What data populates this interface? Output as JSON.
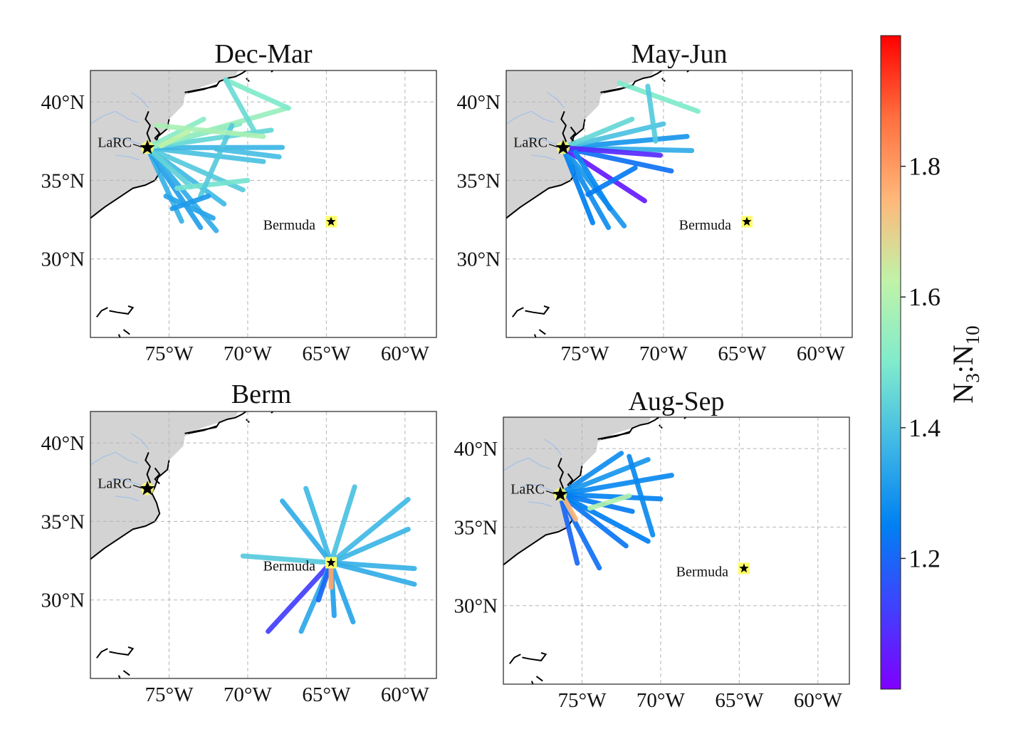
{
  "panels": [
    {
      "id": "dec-mar",
      "title": "Dec-Mar",
      "tracks": [
        {
          "from": "LaRC",
          "to": [
            -74.2,
            32.4
          ],
          "v": 1.36
        },
        {
          "from": "LaRC",
          "to": [
            -73.0,
            32.0
          ],
          "v": 1.32
        },
        {
          "from": "LaRC",
          "to": [
            -72.0,
            31.8
          ],
          "v": 1.35
        },
        {
          "from": "LaRC",
          "to": [
            -71.5,
            33.5
          ],
          "v": 1.38
        },
        {
          "from": "LaRC",
          "to": [
            -70.3,
            34.4
          ],
          "v": 1.42
        },
        {
          "from": "LaRC",
          "to": [
            -69.0,
            36.2
          ],
          "v": 1.4
        },
        {
          "from": "LaRC",
          "to": [
            -67.8,
            37.1
          ],
          "v": 1.37
        },
        {
          "from": "LaRC",
          "to": [
            -68.5,
            38.2
          ],
          "v": 1.45
        },
        {
          "from": "LaRC",
          "to": [
            -70.5,
            38.6
          ],
          "v": 1.5
        },
        {
          "from": "LaRC",
          "to": [
            -72.8,
            38.9
          ],
          "v": 1.52
        },
        {
          "from": "LaRC",
          "to": [
            -67.5,
            39.6
          ],
          "v": 1.55
        },
        {
          "from": "LaRC",
          "to": [
            -73.6,
            34.6
          ],
          "v": 1.44
        },
        {
          "from": [
            -74.5,
            34.5
          ],
          "to": [
            -70.0,
            35.0
          ],
          "v": 1.48
        },
        {
          "from": [
            -73.0,
            34.0
          ],
          "to": [
            -71.0,
            38.5
          ],
          "v": 1.42
        },
        {
          "from": [
            -71.4,
            41.4
          ],
          "to": [
            -67.4,
            39.6
          ],
          "v": 1.5
        },
        {
          "from": [
            -71.4,
            41.4
          ],
          "to": [
            -69.5,
            38.0
          ],
          "v": 1.46
        },
        {
          "from": [
            -75.8,
            38.5
          ],
          "to": [
            -69.0,
            37.8
          ],
          "v": 1.58
        },
        {
          "from": [
            -75.5,
            37.2
          ],
          "to": [
            -73.8,
            38.1
          ],
          "v": 1.62
        },
        {
          "from": [
            -75.2,
            34.0
          ],
          "to": [
            -72.2,
            32.6
          ],
          "v": 1.33
        },
        {
          "from": [
            -74.8,
            33.2
          ],
          "to": [
            -72.5,
            34.0
          ],
          "v": 1.31
        },
        {
          "from": [
            -72.0,
            37.0
          ],
          "to": [
            -68.0,
            36.5
          ],
          "v": 1.39
        }
      ]
    },
    {
      "id": "may-jun",
      "title": "May-Jun",
      "tracks": [
        {
          "from": "LaRC",
          "to": [
            -74.5,
            32.3
          ],
          "v": 1.25
        },
        {
          "from": "LaRC",
          "to": [
            -73.5,
            32.0
          ],
          "v": 1.28
        },
        {
          "from": "LaRC",
          "to": [
            -72.5,
            32.1
          ],
          "v": 1.3
        },
        {
          "from": "LaRC",
          "to": [
            -71.2,
            33.7
          ],
          "v": 1.05
        },
        {
          "from": "LaRC",
          "to": [
            -69.5,
            35.6
          ],
          "v": 1.22
        },
        {
          "from": "LaRC",
          "to": [
            -68.2,
            36.9
          ],
          "v": 1.35
        },
        {
          "from": "LaRC",
          "to": [
            -68.5,
            37.8
          ],
          "v": 1.3
        },
        {
          "from": "LaRC",
          "to": [
            -70.0,
            38.6
          ],
          "v": 1.4
        },
        {
          "from": "LaRC",
          "to": [
            -72.0,
            38.9
          ],
          "v": 1.45
        },
        {
          "from": "LaRC",
          "to": [
            -70.2,
            36.6
          ],
          "v": 1.08
        },
        {
          "from": [
            -72.8,
            41.2
          ],
          "to": [
            -67.8,
            39.4
          ],
          "v": 1.5
        },
        {
          "from": [
            -71.0,
            41.0
          ],
          "to": [
            -70.5,
            37.5
          ],
          "v": 1.42
        },
        {
          "from": [
            -75.6,
            36.8
          ],
          "to": [
            -73.4,
            33.2
          ],
          "v": 1.27
        },
        {
          "from": [
            -74.8,
            34.1
          ],
          "to": [
            -71.8,
            35.8
          ],
          "v": 1.24
        }
      ]
    },
    {
      "id": "berm",
      "title": "Berm",
      "tracks": [
        {
          "from": "Bermuda",
          "to": [
            -68.7,
            28.0
          ],
          "v": 1.12
        },
        {
          "from": "Bermuda",
          "to": [
            -70.3,
            32.8
          ],
          "v": 1.42
        },
        {
          "from": "Bermuda",
          "to": [
            -66.3,
            37.1
          ],
          "v": 1.38
        },
        {
          "from": "Bermuda",
          "to": [
            -67.8,
            36.3
          ],
          "v": 1.35
        },
        {
          "from": "Bermuda",
          "to": [
            -63.2,
            37.2
          ],
          "v": 1.4
        },
        {
          "from": "Bermuda",
          "to": [
            -59.8,
            36.4
          ],
          "v": 1.38
        },
        {
          "from": "Bermuda",
          "to": [
            -59.8,
            34.5
          ],
          "v": 1.37
        },
        {
          "from": "Bermuda",
          "to": [
            -59.4,
            32.0
          ],
          "v": 1.36
        },
        {
          "from": "Bermuda",
          "to": [
            -59.4,
            31.0
          ],
          "v": 1.35
        },
        {
          "from": "Bermuda",
          "to": [
            -63.3,
            28.6
          ],
          "v": 1.33
        },
        {
          "from": "Bermuda",
          "to": [
            -66.6,
            28.0
          ],
          "v": 1.34
        },
        {
          "from": "Bermuda",
          "to": [
            -64.5,
            29.0
          ],
          "v": 1.32
        },
        {
          "from": "Bermuda",
          "to": [
            -65.5,
            30.0
          ],
          "v": 1.2
        },
        {
          "from": "Bermuda",
          "to": [
            -64.7,
            30.8
          ],
          "v": 1.78
        }
      ]
    },
    {
      "id": "aug-sep",
      "title": "Aug-Sep",
      "tracks": [
        {
          "from": "LaRC",
          "to": [
            -75.3,
            32.7
          ],
          "v": 1.2
        },
        {
          "from": "LaRC",
          "to": [
            -73.9,
            32.4
          ],
          "v": 1.22
        },
        {
          "from": "LaRC",
          "to": [
            -72.2,
            33.8
          ],
          "v": 1.23
        },
        {
          "from": "LaRC",
          "to": [
            -70.8,
            34.1
          ],
          "v": 1.25
        },
        {
          "from": "LaRC",
          "to": [
            -72.5,
            39.7
          ],
          "v": 1.28
        },
        {
          "from": "LaRC",
          "to": [
            -70.8,
            39.3
          ],
          "v": 1.3
        },
        {
          "from": "LaRC",
          "to": [
            -69.3,
            38.3
          ],
          "v": 1.27
        },
        {
          "from": "LaRC",
          "to": [
            -70.0,
            36.8
          ],
          "v": 1.26
        },
        {
          "from": "LaRC",
          "to": [
            -71.8,
            36.0
          ],
          "v": 1.24
        },
        {
          "from": [
            -76.3,
            37.1
          ],
          "to": [
            -75.4,
            35.5
          ],
          "v": 1.75
        },
        {
          "from": [
            -72.0,
            39.5
          ],
          "to": [
            -70.5,
            34.5
          ],
          "v": 1.27
        },
        {
          "from": [
            -74.5,
            36.2
          ],
          "to": [
            -72.0,
            37.0
          ],
          "v": 1.6
        }
      ]
    }
  ],
  "sites": {
    "larc": {
      "label": "LaRC",
      "lon": -76.38,
      "lat": 37.08
    },
    "bermuda": {
      "label": "Bermuda",
      "lon": -64.7,
      "lat": 32.37
    }
  },
  "axes": {
    "lon_range": [
      -80,
      -58
    ],
    "lat_range": [
      25,
      42
    ],
    "lon_ticks": [
      -75,
      -70,
      -65,
      -60
    ],
    "lat_ticks": [
      30,
      35,
      40
    ],
    "lon_tick_labels": [
      "75°W",
      "70°W",
      "65°W",
      "60°W"
    ],
    "lat_tick_labels": [
      "30°N",
      "35°N",
      "40°N"
    ]
  },
  "colorbar": {
    "range": [
      1.0,
      2.0
    ],
    "ticks": [
      1.2,
      1.4,
      1.6,
      1.8
    ],
    "tick_labels": [
      "1.2",
      "1.4",
      "1.6",
      "1.8"
    ],
    "colormap": "rainbow"
  },
  "colors": {
    "land": "#d3d3d3",
    "ocean": "#ffffff",
    "grid": "#b5b5b5",
    "rivers": "#a9c2e6",
    "coast": "#000000",
    "site_marker": "#ffff66"
  }
}
